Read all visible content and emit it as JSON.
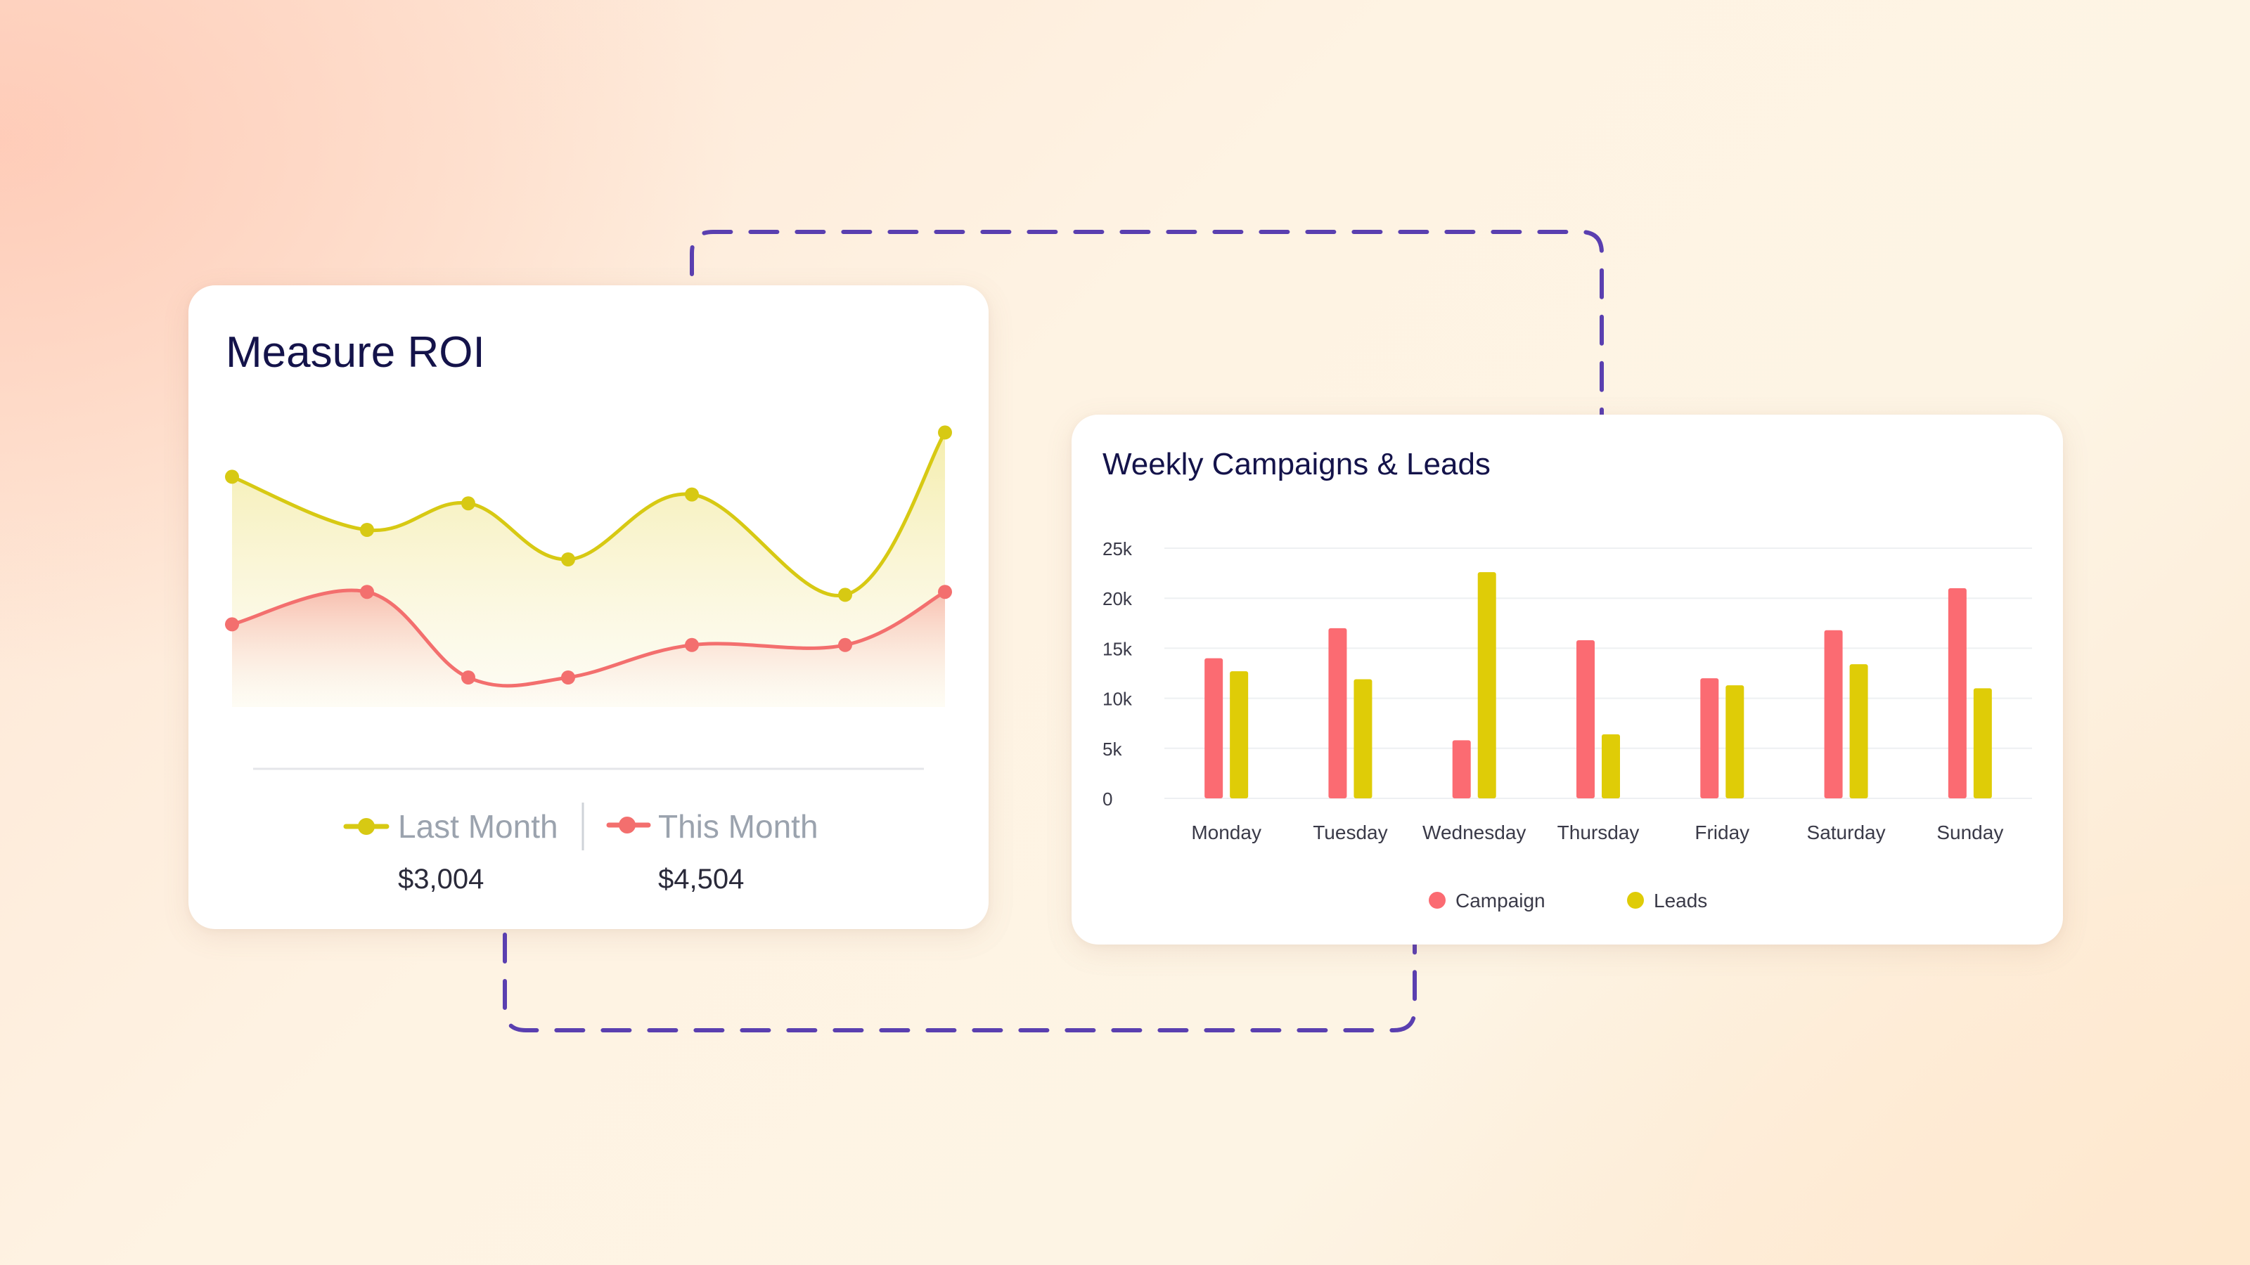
{
  "colors": {
    "last_month": "#d7c913",
    "this_month": "#f36f6e",
    "campaign": "#fb6b72",
    "leads": "#dfcc07",
    "title": "#14134a",
    "dash": "#5a3fb0",
    "muted_text": "#9ba3ae",
    "value_text": "#2a2a3a"
  },
  "roi": {
    "title": "Measure ROI",
    "legend": [
      {
        "label": "Last Month",
        "value": "$3,004"
      },
      {
        "label": "This Month",
        "value": "$4,504"
      }
    ],
    "chart_data": {
      "type": "area",
      "x": [
        0,
        1,
        2,
        3,
        4,
        5,
        6
      ],
      "series": [
        {
          "name": "Last Month",
          "values": [
            0.78,
            0.6,
            0.69,
            0.5,
            0.72,
            0.38,
            0.93
          ]
        },
        {
          "name": "This Month",
          "values": [
            0.28,
            0.39,
            0.1,
            0.1,
            0.21,
            0.21,
            0.39
          ]
        }
      ],
      "ylim": [
        0,
        1
      ],
      "grid": false
    }
  },
  "weekly": {
    "title": "Weekly Campaigns & Leads",
    "chart_data": {
      "type": "bar",
      "title": "Weekly Campaigns & Leads",
      "categories": [
        "Monday",
        "Tuesday",
        "Wednesday",
        "Thursday",
        "Friday",
        "Saturday",
        "Sunday"
      ],
      "series": [
        {
          "name": "Campaign",
          "values": [
            14000,
            17000,
            5800,
            15800,
            12000,
            16800,
            21000
          ]
        },
        {
          "name": "Leads",
          "values": [
            12700,
            11900,
            22600,
            6400,
            11300,
            13400,
            11000
          ]
        }
      ],
      "yticks": [
        "0",
        "5k",
        "10k",
        "15k",
        "20k",
        "25k"
      ],
      "ylim": [
        0,
        25000
      ],
      "grid": true,
      "legend_position": "bottom"
    }
  }
}
